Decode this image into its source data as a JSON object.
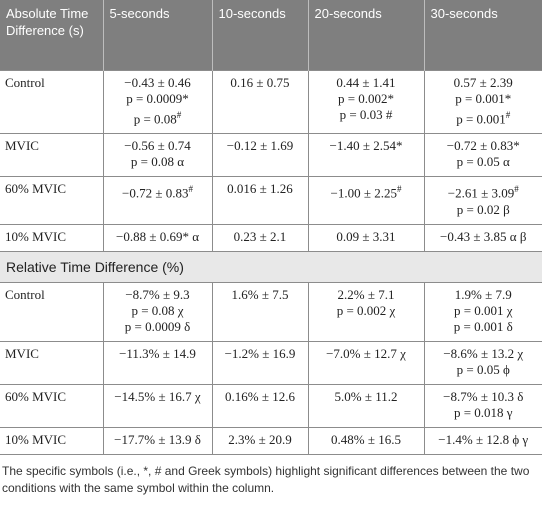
{
  "table": {
    "header": [
      "Absolute Time Difference (s)",
      "5-seconds",
      "10-seconds",
      "20-seconds",
      "30-seconds"
    ],
    "groups": [
      {
        "rows": [
          {
            "label": "Control",
            "cells": [
              [
                "−0.43 ± 0.46",
                "p = 0.0009*",
                {
                  "text": "p = 0.08",
                  "sup": "#"
                }
              ],
              [
                "0.16 ± 0.75"
              ],
              [
                "0.44 ± 1.41",
                "p = 0.002*",
                "p = 0.03 #"
              ],
              [
                "0.57 ± 2.39",
                "p = 0.001*",
                {
                  "text": "p = 0.001",
                  "sup": "#"
                }
              ]
            ]
          },
          {
            "label": "MVIC",
            "cells": [
              [
                "−0.56 ± 0.74",
                "p = 0.08 α"
              ],
              [
                "−0.12 ± 1.69"
              ],
              [
                "−1.40 ± 2.54*"
              ],
              [
                "−0.72 ± 0.83*",
                "p = 0.05 α"
              ]
            ]
          },
          {
            "label": "60% MVIC",
            "cells": [
              [
                {
                  "text": "−0.72 ± 0.83",
                  "sup": "#"
                }
              ],
              [
                "0.016 ± 1.26"
              ],
              [
                {
                  "text": "−1.00 ± 2.25",
                  "sup": "#"
                }
              ],
              [
                {
                  "text": "−2.61 ± 3.09",
                  "sup": "#"
                },
                "p = 0.02 β"
              ]
            ]
          },
          {
            "label": "10% MVIC",
            "cells": [
              [
                "−0.88 ± 0.69* α"
              ],
              [
                "0.23 ± 2.1"
              ],
              [
                "0.09 ± 3.31"
              ],
              [
                "−0.43 ± 3.85 α β"
              ]
            ]
          }
        ]
      },
      {
        "title": "Relative Time Difference (%)",
        "rows": [
          {
            "label": "Control",
            "cells": [
              [
                "−8.7% ± 9.3",
                "p = 0.08 χ",
                "p = 0.0009 δ"
              ],
              [
                "1.6% ± 7.5"
              ],
              [
                "2.2% ± 7.1",
                "p = 0.002 χ"
              ],
              [
                "1.9% ± 7.9",
                "p = 0.001 χ",
                "p = 0.001 δ"
              ]
            ]
          },
          {
            "label": "MVIC",
            "cells": [
              [
                "−11.3% ± 14.9"
              ],
              [
                "−1.2% ± 16.9"
              ],
              [
                "−7.0% ± 12.7 χ"
              ],
              [
                "−8.6% ± 13.2 χ",
                "p = 0.05 ϕ"
              ]
            ]
          },
          {
            "label": "60% MVIC",
            "cells": [
              [
                "−14.5% ± 16.7 χ"
              ],
              [
                "0.16% ± 12.6"
              ],
              [
                "5.0% ± 11.2"
              ],
              [
                "−8.7% ± 10.3 δ",
                "p = 0.018 γ"
              ]
            ]
          },
          {
            "label": "10% MVIC",
            "cells": [
              [
                "−17.7% ± 13.9 δ"
              ],
              [
                "2.3% ± 20.9"
              ],
              [
                "0.48% ± 16.5"
              ],
              [
                "−1.4% ± 12.8 ϕ γ"
              ]
            ]
          }
        ]
      }
    ]
  },
  "footnote": "The specific symbols (i.e., *, # and Greek symbols) highlight significant differences between the two conditions with the same symbol within the column."
}
